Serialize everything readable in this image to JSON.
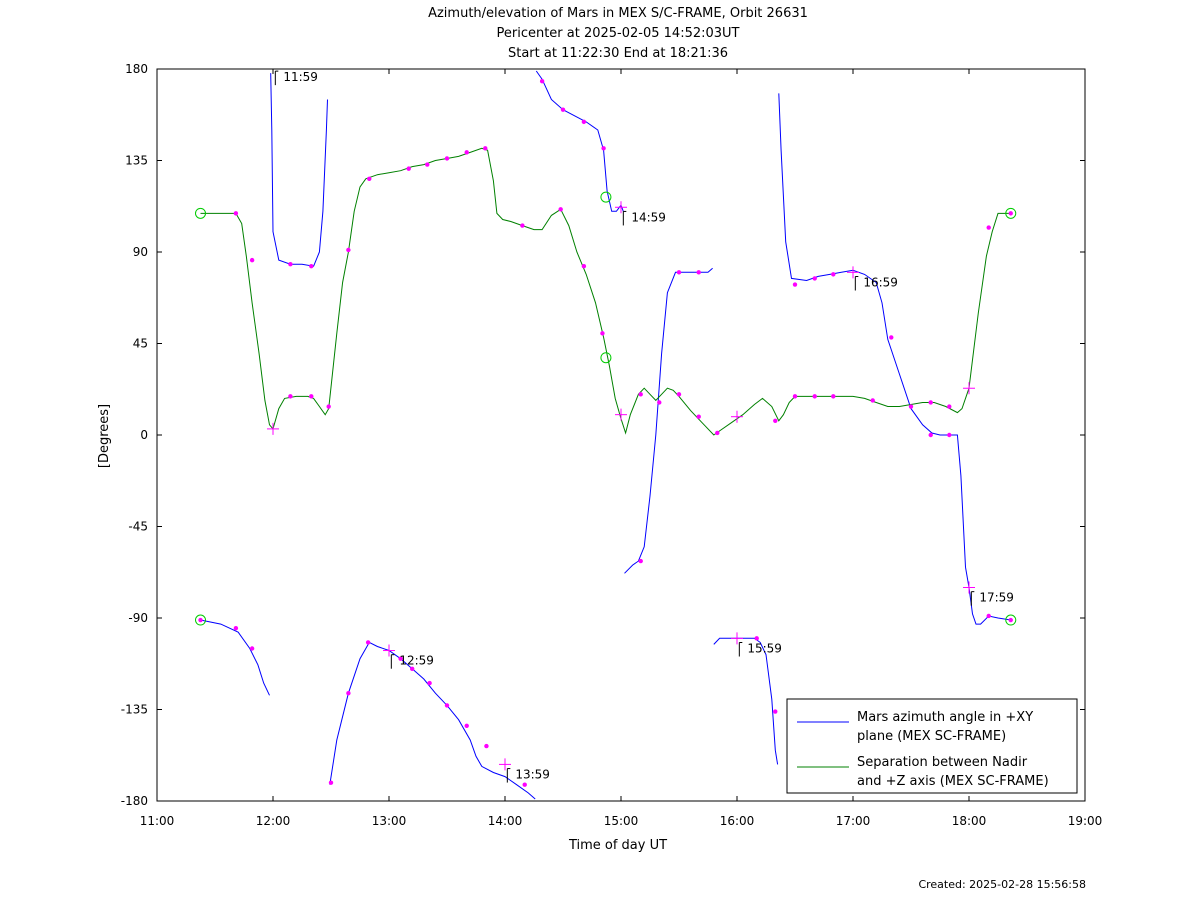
{
  "chart_data": {
    "type": "line",
    "title": "Azimuth/elevation of Mars in MEX S/C-FRAME,  Orbit 26631",
    "subtitle1": "Pericenter at 2025-02-05 14:52:03UT",
    "subtitle2": "Start at 11:22:30 End at 18:21:36",
    "xlabel": "Time of day UT",
    "ylabel": "[Degrees]",
    "footer": "Created: 2025-02-28 15:56:58",
    "xlim": [
      11.0,
      19.0
    ],
    "ylim": [
      -180,
      180
    ],
    "xticks": [
      11,
      12,
      13,
      14,
      15,
      16,
      17,
      18,
      19
    ],
    "xtick_labels": [
      "11:00",
      "12:00",
      "13:00",
      "14:00",
      "15:00",
      "16:00",
      "17:00",
      "18:00",
      "19:00"
    ],
    "yticks": [
      180,
      135,
      90,
      45,
      0,
      -45,
      -90,
      -135,
      -180
    ],
    "ytick_labels": [
      "180",
      "135",
      "90",
      "45",
      "0",
      "-45",
      "-90",
      "-135",
      "-180"
    ],
    "grid": false,
    "legend_position": "bottom-right",
    "series": [
      {
        "name": "Mars azimuth angle in +XY plane (MEX SC-FRAME)",
        "legend_line1": "Mars azimuth angle in +XY",
        "legend_line2": "plane (MEX SC-FRAME)",
        "color": "#0000ff",
        "segments": [
          [
            [
              11.375,
              -91
            ],
            [
              11.55,
              -93
            ],
            [
              11.7,
              -97
            ],
            [
              11.8,
              -105
            ],
            [
              11.87,
              -113
            ],
            [
              11.92,
              -122
            ],
            [
              11.97,
              -128
            ]
          ],
          [
            [
              11.98,
              178
            ],
            [
              11.99,
              150
            ],
            [
              12.0,
              100
            ],
            [
              12.05,
              86
            ],
            [
              12.15,
              84
            ],
            [
              12.25,
              84
            ],
            [
              12.35,
              83
            ],
            [
              12.4,
              90
            ],
            [
              12.43,
              110
            ],
            [
              12.46,
              150
            ],
            [
              12.47,
              165
            ]
          ],
          [
            [
              12.49,
              -172
            ],
            [
              12.55,
              -150
            ],
            [
              12.65,
              -127
            ],
            [
              12.75,
              -110
            ],
            [
              12.83,
              -102
            ],
            [
              12.9,
              -104
            ],
            [
              13.0,
              -106
            ],
            [
              13.1,
              -110
            ],
            [
              13.2,
              -115
            ],
            [
              13.3,
              -120
            ],
            [
              13.4,
              -127
            ],
            [
              13.5,
              -133
            ],
            [
              13.6,
              -140
            ],
            [
              13.7,
              -150
            ],
            [
              13.75,
              -158
            ],
            [
              13.8,
              -163
            ],
            [
              13.9,
              -166
            ],
            [
              14.0,
              -168
            ],
            [
              14.1,
              -172
            ],
            [
              14.2,
              -176
            ],
            [
              14.26,
              -179
            ]
          ],
          [
            [
              14.27,
              179
            ],
            [
              14.32,
              175
            ],
            [
              14.4,
              165
            ],
            [
              14.5,
              160
            ],
            [
              14.6,
              157
            ],
            [
              14.7,
              154
            ],
            [
              14.8,
              150
            ],
            [
              14.85,
              140
            ],
            [
              14.88,
              120
            ],
            [
              14.92,
              110
            ],
            [
              14.96,
              110
            ],
            [
              15.0,
              113
            ],
            [
              15.02,
              110
            ]
          ],
          [
            [
              15.03,
              -68
            ],
            [
              15.1,
              -64
            ],
            [
              15.15,
              -62
            ],
            [
              15.2,
              -55
            ],
            [
              15.25,
              -30
            ],
            [
              15.3,
              0
            ],
            [
              15.35,
              40
            ],
            [
              15.4,
              70
            ],
            [
              15.47,
              80
            ],
            [
              15.6,
              80
            ],
            [
              15.75,
              80
            ],
            [
              15.79,
              82
            ]
          ],
          [
            [
              15.8,
              -103
            ],
            [
              15.85,
              -100
            ],
            [
              15.95,
              -100
            ],
            [
              16.05,
              -100
            ],
            [
              16.15,
              -100
            ],
            [
              16.2,
              -102
            ],
            [
              16.25,
              -108
            ],
            [
              16.3,
              -130
            ],
            [
              16.33,
              -155
            ],
            [
              16.35,
              -162
            ]
          ],
          [
            [
              16.36,
              168
            ],
            [
              16.38,
              140
            ],
            [
              16.42,
              95
            ],
            [
              16.47,
              77
            ],
            [
              16.6,
              76
            ],
            [
              16.7,
              78
            ],
            [
              16.8,
              79
            ],
            [
              16.9,
              80
            ],
            [
              17.0,
              81
            ],
            [
              17.1,
              79
            ],
            [
              17.2,
              75
            ],
            [
              17.25,
              65
            ],
            [
              17.3,
              47
            ],
            [
              17.4,
              30
            ],
            [
              17.5,
              13
            ],
            [
              17.6,
              5
            ],
            [
              17.68,
              1
            ],
            [
              17.75,
              0
            ],
            [
              17.85,
              0
            ],
            [
              17.9,
              0
            ],
            [
              17.93,
              -20
            ],
            [
              17.97,
              -65
            ],
            [
              18.0,
              -75
            ],
            [
              18.03,
              -88
            ],
            [
              18.06,
              -93
            ],
            [
              18.1,
              -93
            ],
            [
              18.17,
              -89
            ],
            [
              18.25,
              -90
            ],
            [
              18.36,
              -91
            ]
          ]
        ]
      },
      {
        "name": "Separation between Nadir and +Z axis (MEX SC-FRAME)",
        "legend_line1": "Separation between Nadir",
        "legend_line2": "and +Z axis (MEX SC-FRAME)",
        "color": "#008000",
        "segments": [
          [
            [
              11.375,
              109
            ],
            [
              11.5,
              109
            ],
            [
              11.6,
              109
            ],
            [
              11.68,
              109
            ],
            [
              11.73,
              104
            ],
            [
              11.77,
              88
            ],
            [
              11.82,
              65
            ],
            [
              11.88,
              40
            ],
            [
              11.93,
              17
            ],
            [
              11.97,
              5
            ],
            [
              12.0,
              3
            ],
            [
              12.05,
              13
            ],
            [
              12.1,
              18
            ],
            [
              12.2,
              19
            ],
            [
              12.3,
              19
            ],
            [
              12.35,
              18
            ],
            [
              12.4,
              14
            ],
            [
              12.45,
              10
            ],
            [
              12.48,
              13
            ],
            [
              12.55,
              50
            ],
            [
              12.6,
              75
            ],
            [
              12.65,
              90
            ],
            [
              12.7,
              110
            ],
            [
              12.75,
              122
            ],
            [
              12.8,
              126
            ],
            [
              12.9,
              128
            ],
            [
              13.0,
              129
            ],
            [
              13.1,
              130
            ],
            [
              13.2,
              132
            ],
            [
              13.3,
              133
            ],
            [
              13.4,
              135
            ],
            [
              13.5,
              136
            ],
            [
              13.6,
              137
            ],
            [
              13.7,
              139
            ],
            [
              13.8,
              141
            ],
            [
              13.85,
              140
            ],
            [
              13.9,
              125
            ],
            [
              13.93,
              109
            ],
            [
              13.98,
              106
            ],
            [
              14.05,
              105
            ],
            [
              14.15,
              103
            ],
            [
              14.25,
              101
            ],
            [
              14.32,
              101
            ],
            [
              14.4,
              108
            ],
            [
              14.48,
              111
            ],
            [
              14.55,
              103
            ],
            [
              14.62,
              90
            ],
            [
              14.7,
              79
            ],
            [
              14.78,
              65
            ],
            [
              14.85,
              48
            ],
            [
              14.9,
              34
            ],
            [
              14.95,
              18
            ],
            [
              15.0,
              8
            ],
            [
              15.04,
              1
            ],
            [
              15.08,
              10
            ],
            [
              15.15,
              20
            ],
            [
              15.2,
              23
            ],
            [
              15.25,
              20
            ],
            [
              15.3,
              17
            ],
            [
              15.35,
              20
            ],
            [
              15.4,
              23
            ],
            [
              15.45,
              22
            ],
            [
              15.5,
              19
            ],
            [
              15.6,
              12
            ],
            [
              15.7,
              6
            ],
            [
              15.8,
              0
            ],
            [
              15.85,
              2
            ],
            [
              15.95,
              6
            ],
            [
              16.05,
              10
            ],
            [
              16.15,
              15
            ],
            [
              16.22,
              18
            ],
            [
              16.3,
              14
            ],
            [
              16.36,
              7
            ],
            [
              16.4,
              10
            ],
            [
              16.45,
              16
            ],
            [
              16.5,
              19
            ],
            [
              16.6,
              19
            ],
            [
              16.7,
              19
            ],
            [
              16.8,
              19
            ],
            [
              16.9,
              19
            ],
            [
              17.0,
              19
            ],
            [
              17.1,
              18
            ],
            [
              17.2,
              16
            ],
            [
              17.3,
              14
            ],
            [
              17.4,
              14
            ],
            [
              17.5,
              15
            ],
            [
              17.6,
              16
            ],
            [
              17.7,
              16
            ],
            [
              17.8,
              14
            ],
            [
              17.9,
              11
            ],
            [
              17.94,
              13
            ],
            [
              18.0,
              23
            ],
            [
              18.08,
              60
            ],
            [
              18.15,
              88
            ],
            [
              18.2,
              100
            ],
            [
              18.25,
              109
            ],
            [
              18.36,
              109
            ]
          ]
        ]
      }
    ],
    "dot_markers": [
      [
        11.375,
        -91
      ],
      [
        11.68,
        -95
      ],
      [
        11.82,
        -105
      ],
      [
        12.15,
        84
      ],
      [
        12.33,
        83
      ],
      [
        12.48,
        14
      ],
      [
        12.5,
        -171
      ],
      [
        12.65,
        -127
      ],
      [
        12.82,
        -102
      ],
      [
        13.1,
        -110
      ],
      [
        13.2,
        -115
      ],
      [
        13.35,
        -122
      ],
      [
        13.5,
        -133
      ],
      [
        13.67,
        -143
      ],
      [
        13.84,
        -153
      ],
      [
        14.17,
        -172
      ],
      [
        14.32,
        174
      ],
      [
        14.5,
        160
      ],
      [
        14.68,
        154
      ],
      [
        14.85,
        141
      ],
      [
        11.68,
        109
      ],
      [
        11.82,
        86
      ],
      [
        12.15,
        19
      ],
      [
        12.33,
        19
      ],
      [
        12.65,
        91
      ],
      [
        12.83,
        126
      ],
      [
        13.17,
        131
      ],
      [
        13.33,
        133
      ],
      [
        13.5,
        136
      ],
      [
        13.67,
        139
      ],
      [
        13.83,
        141
      ],
      [
        14.15,
        103
      ],
      [
        14.48,
        111
      ],
      [
        14.68,
        83
      ],
      [
        14.84,
        50
      ],
      [
        15.17,
        20
      ],
      [
        15.33,
        16
      ],
      [
        15.5,
        20
      ],
      [
        15.67,
        9
      ],
      [
        15.83,
        1
      ],
      [
        15.17,
        -62
      ],
      [
        15.5,
        80
      ],
      [
        15.67,
        80
      ],
      [
        16.17,
        -100
      ],
      [
        16.33,
        -136
      ],
      [
        16.5,
        74
      ],
      [
        16.67,
        77
      ],
      [
        16.83,
        79
      ],
      [
        16.33,
        7
      ],
      [
        16.5,
        19
      ],
      [
        16.67,
        19
      ],
      [
        16.83,
        19
      ],
      [
        17.17,
        17
      ],
      [
        17.33,
        48
      ],
      [
        17.5,
        14
      ],
      [
        17.67,
        0
      ],
      [
        17.83,
        0
      ],
      [
        17.67,
        16
      ],
      [
        17.83,
        14
      ],
      [
        18.17,
        102
      ],
      [
        18.17,
        -89
      ],
      [
        18.36,
        -91
      ],
      [
        18.36,
        109
      ]
    ],
    "cross_markers": [
      [
        12.0,
        3
      ],
      [
        13.0,
        -106
      ],
      [
        14.0,
        -162
      ],
      [
        15.0,
        112
      ],
      [
        15.0,
        10
      ],
      [
        16.0,
        -100
      ],
      [
        16.0,
        9
      ],
      [
        17.0,
        80
      ],
      [
        18.0,
        -75
      ],
      [
        18.0,
        23
      ]
    ],
    "circle_markers": [
      [
        11.375,
        -91
      ],
      [
        11.375,
        109
      ],
      [
        14.87,
        117
      ],
      [
        14.87,
        38
      ],
      [
        18.36,
        -91
      ],
      [
        18.36,
        109
      ]
    ],
    "annotations": [
      {
        "x": 12.02,
        "y": 176,
        "text": "11:59"
      },
      {
        "x": 13.02,
        "y": -111,
        "text": "12:59"
      },
      {
        "x": 14.02,
        "y": -167,
        "text": "13:59"
      },
      {
        "x": 15.02,
        "y": 107,
        "text": "14:59"
      },
      {
        "x": 16.02,
        "y": -105,
        "text": "15:59"
      },
      {
        "x": 17.02,
        "y": 75,
        "text": "16:59"
      },
      {
        "x": 18.02,
        "y": -80,
        "text": "17:59"
      }
    ],
    "marker_color": "#ff00ff",
    "circle_color": "#00cc00"
  }
}
